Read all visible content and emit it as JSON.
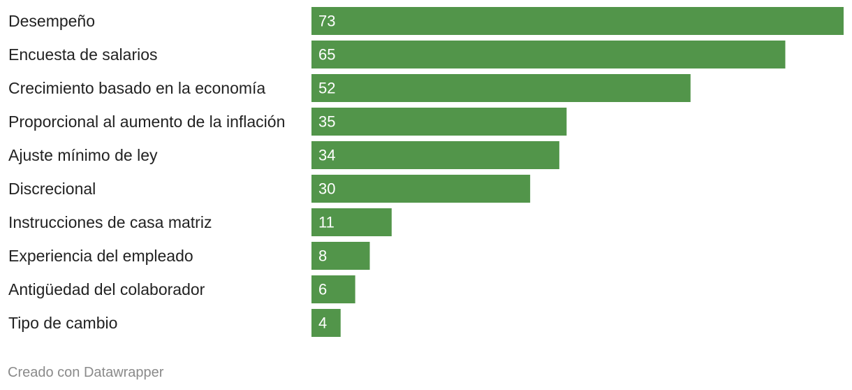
{
  "chart_data": {
    "type": "bar",
    "orientation": "horizontal",
    "categories": [
      "Desempeño",
      "Encuesta de salarios",
      "Crecimiento basado en la economía",
      "Proporcional al aumento de la inflación",
      "Ajuste mínimo de ley",
      "Discrecional",
      "Instrucciones de casa matriz",
      "Experiencia del empleado",
      "Antigüedad del colaborador",
      "Tipo de cambio"
    ],
    "values": [
      73,
      65,
      52,
      35,
      34,
      30,
      11,
      8,
      6,
      4
    ],
    "data_labels": [
      "73",
      "65",
      "52",
      "35",
      "34",
      "30",
      "11",
      "8",
      "6",
      "4"
    ],
    "xlim": [
      0,
      73
    ],
    "bar_color": "#52954a",
    "grid": false,
    "legend": "none"
  },
  "footer": {
    "credit": "Creado con Datawrapper"
  }
}
